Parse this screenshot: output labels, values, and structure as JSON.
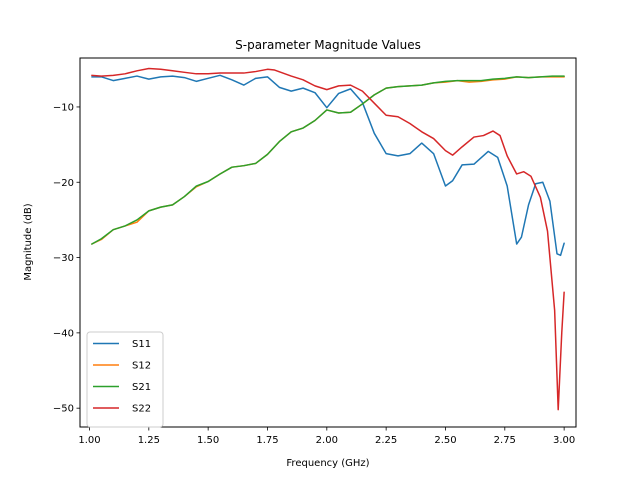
{
  "chart_data": {
    "type": "line",
    "title": "S-parameter Magnitude Values",
    "xlabel": "Frequency (GHz)",
    "ylabel": "Magnitude (dB)",
    "xlim": [
      0.96,
      3.05
    ],
    "ylim": [
      -52.5,
      -3.5
    ],
    "xticks": [
      1.0,
      1.25,
      1.5,
      1.75,
      2.0,
      2.25,
      2.5,
      2.75,
      3.0
    ],
    "xtick_labels": [
      "1.00",
      "1.25",
      "1.50",
      "1.75",
      "2.00",
      "2.25",
      "2.50",
      "2.75",
      "3.00"
    ],
    "yticks": [
      -10,
      -20,
      -30,
      -40,
      -50
    ],
    "ytick_labels": [
      "−10",
      "−20",
      "−30",
      "−40",
      "−50"
    ],
    "grid": false,
    "legend": "lower-left",
    "series": [
      {
        "name": "S11",
        "color": "#1f77b4",
        "points": [
          [
            1.01,
            -6.0
          ],
          [
            1.05,
            -6.0
          ],
          [
            1.1,
            -6.5
          ],
          [
            1.15,
            -6.2
          ],
          [
            1.2,
            -5.9
          ],
          [
            1.25,
            -6.3
          ],
          [
            1.3,
            -6.0
          ],
          [
            1.35,
            -5.9
          ],
          [
            1.4,
            -6.1
          ],
          [
            1.45,
            -6.6
          ],
          [
            1.5,
            -6.2
          ],
          [
            1.55,
            -5.8
          ],
          [
            1.6,
            -6.4
          ],
          [
            1.65,
            -7.1
          ],
          [
            1.7,
            -6.2
          ],
          [
            1.75,
            -6.0
          ],
          [
            1.8,
            -7.4
          ],
          [
            1.85,
            -7.9
          ],
          [
            1.9,
            -7.5
          ],
          [
            1.95,
            -8.1
          ],
          [
            2.0,
            -10.1
          ],
          [
            2.05,
            -8.2
          ],
          [
            2.1,
            -7.6
          ],
          [
            2.15,
            -9.4
          ],
          [
            2.2,
            -13.5
          ],
          [
            2.25,
            -16.2
          ],
          [
            2.3,
            -16.5
          ],
          [
            2.35,
            -16.2
          ],
          [
            2.4,
            -14.8
          ],
          [
            2.45,
            -16.2
          ],
          [
            2.5,
            -20.5
          ],
          [
            2.53,
            -19.8
          ],
          [
            2.57,
            -17.7
          ],
          [
            2.62,
            -17.6
          ],
          [
            2.68,
            -15.9
          ],
          [
            2.72,
            -16.7
          ],
          [
            2.76,
            -20.5
          ],
          [
            2.8,
            -28.2
          ],
          [
            2.82,
            -27.3
          ],
          [
            2.85,
            -23.0
          ],
          [
            2.88,
            -20.2
          ],
          [
            2.91,
            -20.0
          ],
          [
            2.94,
            -22.5
          ],
          [
            2.97,
            -29.5
          ],
          [
            2.985,
            -29.7
          ],
          [
            3.0,
            -28.1
          ]
        ]
      },
      {
        "name": "S12",
        "color": "#ff7f0e",
        "points": [
          [
            1.01,
            -28.2
          ],
          [
            1.05,
            -27.6
          ],
          [
            1.1,
            -26.3
          ],
          [
            1.15,
            -25.8
          ],
          [
            1.2,
            -25.3
          ],
          [
            1.25,
            -23.8
          ],
          [
            1.3,
            -23.3
          ],
          [
            1.35,
            -23.0
          ],
          [
            1.4,
            -21.9
          ],
          [
            1.45,
            -20.6
          ],
          [
            1.5,
            -19.9
          ],
          [
            1.55,
            -18.9
          ],
          [
            1.6,
            -18.0
          ],
          [
            1.65,
            -17.8
          ],
          [
            1.7,
            -17.5
          ],
          [
            1.75,
            -16.3
          ],
          [
            1.8,
            -14.6
          ],
          [
            1.85,
            -13.3
          ],
          [
            1.9,
            -12.8
          ],
          [
            1.95,
            -11.8
          ],
          [
            2.0,
            -10.4
          ],
          [
            2.05,
            -10.8
          ],
          [
            2.1,
            -10.7
          ],
          [
            2.15,
            -9.6
          ],
          [
            2.2,
            -8.4
          ],
          [
            2.25,
            -7.5
          ],
          [
            2.3,
            -7.3
          ],
          [
            2.35,
            -7.2
          ],
          [
            2.4,
            -7.1
          ],
          [
            2.45,
            -6.8
          ],
          [
            2.5,
            -6.7
          ],
          [
            2.55,
            -6.5
          ],
          [
            2.6,
            -6.7
          ],
          [
            2.65,
            -6.6
          ],
          [
            2.7,
            -6.4
          ],
          [
            2.75,
            -6.3
          ],
          [
            2.8,
            -6.0
          ],
          [
            2.85,
            -6.1
          ],
          [
            2.9,
            -6.0
          ],
          [
            2.95,
            -6.0
          ],
          [
            3.0,
            -6.0
          ]
        ]
      },
      {
        "name": "S21",
        "color": "#2ca02c",
        "points": [
          [
            1.01,
            -28.2
          ],
          [
            1.05,
            -27.5
          ],
          [
            1.1,
            -26.3
          ],
          [
            1.15,
            -25.8
          ],
          [
            1.2,
            -25.0
          ],
          [
            1.25,
            -23.8
          ],
          [
            1.3,
            -23.3
          ],
          [
            1.35,
            -23.0
          ],
          [
            1.4,
            -21.9
          ],
          [
            1.45,
            -20.5
          ],
          [
            1.5,
            -19.9
          ],
          [
            1.55,
            -18.9
          ],
          [
            1.6,
            -18.0
          ],
          [
            1.65,
            -17.8
          ],
          [
            1.7,
            -17.5
          ],
          [
            1.75,
            -16.3
          ],
          [
            1.8,
            -14.6
          ],
          [
            1.85,
            -13.3
          ],
          [
            1.9,
            -12.8
          ],
          [
            1.95,
            -11.8
          ],
          [
            2.0,
            -10.4
          ],
          [
            2.05,
            -10.8
          ],
          [
            2.1,
            -10.7
          ],
          [
            2.15,
            -9.6
          ],
          [
            2.2,
            -8.4
          ],
          [
            2.25,
            -7.5
          ],
          [
            2.3,
            -7.3
          ],
          [
            2.35,
            -7.2
          ],
          [
            2.4,
            -7.1
          ],
          [
            2.45,
            -6.8
          ],
          [
            2.5,
            -6.6
          ],
          [
            2.55,
            -6.5
          ],
          [
            2.6,
            -6.5
          ],
          [
            2.65,
            -6.5
          ],
          [
            2.7,
            -6.3
          ],
          [
            2.75,
            -6.2
          ],
          [
            2.8,
            -6.0
          ],
          [
            2.85,
            -6.1
          ],
          [
            2.9,
            -6.0
          ],
          [
            2.95,
            -5.9
          ],
          [
            3.0,
            -5.9
          ]
        ]
      },
      {
        "name": "S22",
        "color": "#d62728",
        "points": [
          [
            1.01,
            -5.8
          ],
          [
            1.05,
            -5.9
          ],
          [
            1.1,
            -5.8
          ],
          [
            1.15,
            -5.6
          ],
          [
            1.2,
            -5.2
          ],
          [
            1.25,
            -4.9
          ],
          [
            1.3,
            -5.0
          ],
          [
            1.35,
            -5.2
          ],
          [
            1.4,
            -5.4
          ],
          [
            1.45,
            -5.6
          ],
          [
            1.5,
            -5.6
          ],
          [
            1.55,
            -5.5
          ],
          [
            1.6,
            -5.5
          ],
          [
            1.65,
            -5.5
          ],
          [
            1.7,
            -5.3
          ],
          [
            1.75,
            -5.0
          ],
          [
            1.78,
            -5.1
          ],
          [
            1.85,
            -5.9
          ],
          [
            1.9,
            -6.4
          ],
          [
            1.95,
            -7.2
          ],
          [
            2.0,
            -7.7
          ],
          [
            2.05,
            -7.2
          ],
          [
            2.1,
            -7.1
          ],
          [
            2.15,
            -7.9
          ],
          [
            2.2,
            -9.5
          ],
          [
            2.25,
            -11.1
          ],
          [
            2.3,
            -11.3
          ],
          [
            2.35,
            -12.2
          ],
          [
            2.4,
            -13.3
          ],
          [
            2.45,
            -14.2
          ],
          [
            2.5,
            -15.8
          ],
          [
            2.53,
            -16.4
          ],
          [
            2.57,
            -15.3
          ],
          [
            2.62,
            -14.0
          ],
          [
            2.66,
            -13.8
          ],
          [
            2.7,
            -13.2
          ],
          [
            2.73,
            -13.8
          ],
          [
            2.76,
            -16.5
          ],
          [
            2.8,
            -18.9
          ],
          [
            2.83,
            -18.6
          ],
          [
            2.86,
            -19.2
          ],
          [
            2.9,
            -22.0
          ],
          [
            2.93,
            -26.5
          ],
          [
            2.96,
            -37.0
          ],
          [
            2.975,
            -50.2
          ],
          [
            2.99,
            -40.0
          ],
          [
            3.0,
            -34.6
          ]
        ]
      }
    ]
  }
}
